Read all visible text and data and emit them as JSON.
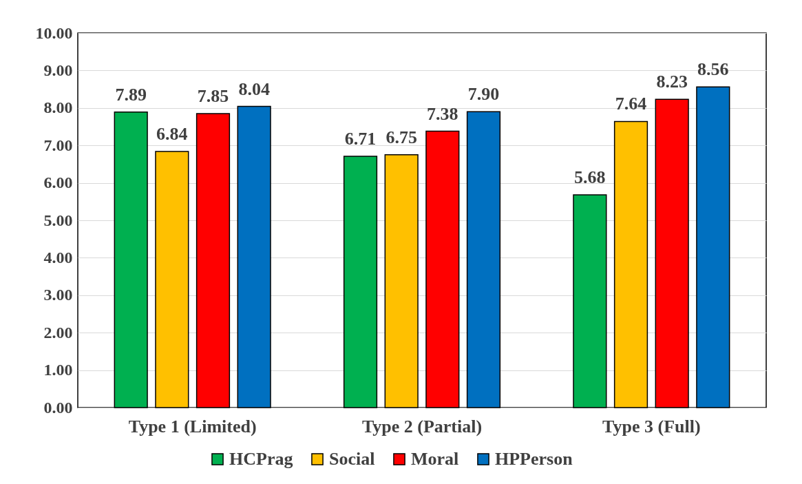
{
  "chart_data": {
    "type": "bar",
    "categories": [
      "Type 1 (Limited)",
      "Type 2 (Partial)",
      "Type 3 (Full)"
    ],
    "series": [
      {
        "name": "HCPrag",
        "color": "#00b050",
        "values": [
          7.89,
          6.71,
          5.68
        ],
        "value_labels": [
          "7.89",
          "6.71",
          "5.68"
        ]
      },
      {
        "name": "Social",
        "color": "#ffc000",
        "values": [
          6.84,
          6.75,
          7.64
        ],
        "value_labels": [
          "6.84",
          "6.75",
          "7.64"
        ]
      },
      {
        "name": "Moral",
        "color": "#ff0000",
        "values": [
          7.85,
          7.38,
          8.23
        ],
        "value_labels": [
          "7.85",
          "7.38",
          "8.23"
        ]
      },
      {
        "name": "HPPerson",
        "color": "#0070c0",
        "values": [
          8.04,
          7.9,
          8.56
        ],
        "value_labels": [
          "8.04",
          "7.90",
          "8.56"
        ]
      }
    ],
    "ylim": [
      0,
      10
    ],
    "yticks": [
      {
        "value": 0,
        "label": "0.00"
      },
      {
        "value": 1,
        "label": "1.00"
      },
      {
        "value": 2,
        "label": "2.00"
      },
      {
        "value": 3,
        "label": "3.00"
      },
      {
        "value": 4,
        "label": "4.00"
      },
      {
        "value": 5,
        "label": "5.00"
      },
      {
        "value": 6,
        "label": "6.00"
      },
      {
        "value": 7,
        "label": "7.00"
      },
      {
        "value": 8,
        "label": "8.00"
      },
      {
        "value": 9,
        "label": "9.00"
      },
      {
        "value": 10,
        "label": "10.00"
      }
    ],
    "grid": true,
    "legend": "bottom"
  }
}
